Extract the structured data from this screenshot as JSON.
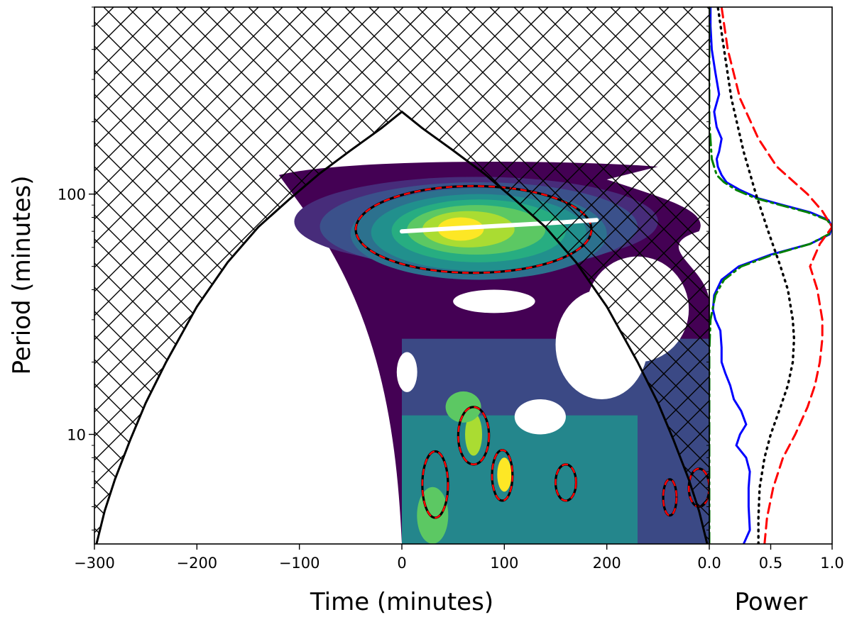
{
  "chart_data": [
    {
      "type": "heatmap",
      "subtype": "wavelet-power-spectrum",
      "title": "",
      "xlabel": "Time (minutes)",
      "ylabel": "Period (minutes)",
      "xlim": [
        -300,
        300
      ],
      "ylim": [
        3.5,
        600
      ],
      "yscale": "log",
      "x_ticks": [
        -300,
        -200,
        -100,
        0,
        100,
        200
      ],
      "x_tick_labels": [
        "−300",
        "−200",
        "−100",
        "0",
        "100",
        "200"
      ],
      "y_ticks": [
        10,
        100
      ],
      "y_tick_labels": [
        "10",
        "100"
      ],
      "colormap": "viridis",
      "cone_of_influence": {
        "t": [
          -298,
          -290,
          -280,
          -265,
          -250,
          -230,
          -200,
          -170,
          -140,
          -110,
          -80,
          -50,
          -20,
          0,
          20,
          50,
          80,
          110,
          140,
          170,
          200,
          230,
          250,
          265,
          280,
          290,
          298
        ],
        "period": [
          3.5,
          4.8,
          6.5,
          9.5,
          13.5,
          20,
          34,
          52,
          73,
          95,
          122,
          152,
          188,
          220,
          188,
          152,
          122,
          95,
          73,
          52,
          34,
          20,
          13.5,
          9.5,
          6.5,
          4.8,
          3.5
        ],
        "hatch": "crosshatch",
        "color": "#000000"
      },
      "ridge_line": {
        "t": [
          0,
          50,
          100,
          150,
          190
        ],
        "period": [
          70,
          72,
          74,
          76,
          78
        ],
        "color": "#ffffff"
      },
      "significance_contours": {
        "styles": [
          "solid black",
          "dashed red"
        ],
        "regions": [
          {
            "t_range": [
              -45,
              185
            ],
            "period_range": [
              47,
              108
            ]
          },
          {
            "t_range": [
              55,
              85
            ],
            "period_range": [
              7.5,
              13
            ]
          },
          {
            "t_range": [
              20,
              45
            ],
            "period_range": [
              4.5,
              8.5
            ]
          },
          {
            "t_range": [
              88,
              108
            ],
            "period_range": [
              5.3,
              8.6
            ]
          },
          {
            "t_range": [
              150,
              170
            ],
            "period_range": [
              5.3,
              7.5
            ]
          },
          {
            "t_range": [
              255,
              268
            ],
            "period_range": [
              4.6,
              6.5
            ]
          },
          {
            "t_range": [
              280,
              300
            ],
            "period_range": [
              5,
              7.2
            ]
          }
        ]
      },
      "dominant_period_minutes": 75
    },
    {
      "type": "line",
      "subtype": "global-wavelet-spectrum",
      "xlabel": "Power",
      "ylabel": "",
      "xlim": [
        0,
        1
      ],
      "yscale": "log",
      "ylim": [
        3.5,
        600
      ],
      "x_ticks": [
        0,
        0.5,
        1
      ],
      "x_tick_labels": [
        "0.0",
        "0.5",
        "1.0"
      ],
      "series": [
        {
          "color": "#0000ff",
          "style": "solid",
          "period": [
            3.5,
            4,
            5,
            6,
            7,
            8,
            9,
            10,
            11,
            12.5,
            14,
            16,
            18,
            20,
            23,
            27,
            30,
            33,
            38,
            44,
            50,
            56,
            62,
            68,
            73,
            78,
            84,
            90,
            96,
            104,
            112,
            120,
            130,
            140,
            150,
            170,
            190,
            220,
            260,
            320,
            400,
            500,
            600
          ],
          "power": [
            0.28,
            0.33,
            0.32,
            0.32,
            0.33,
            0.3,
            0.22,
            0.25,
            0.3,
            0.26,
            0.2,
            0.17,
            0.13,
            0.1,
            0.1,
            0.09,
            0.05,
            0.03,
            0.04,
            0.1,
            0.24,
            0.5,
            0.82,
            0.98,
            1.0,
            0.97,
            0.82,
            0.6,
            0.4,
            0.25,
            0.14,
            0.1,
            0.07,
            0.06,
            0.08,
            0.1,
            0.06,
            0.04,
            0.08,
            0.05,
            0.02,
            0.01,
            0.01
          ]
        },
        {
          "color": "#008000",
          "style": "dashdot",
          "period": [
            3.5,
            8,
            15,
            22,
            30,
            38,
            44,
            50,
            56,
            62,
            68,
            73,
            78,
            84,
            90,
            96,
            104,
            112,
            120,
            140,
            200,
            300,
            600
          ],
          "power": [
            0.0,
            0.0,
            0.0,
            0.0,
            0.01,
            0.05,
            0.12,
            0.26,
            0.52,
            0.82,
            0.97,
            1.0,
            0.96,
            0.8,
            0.58,
            0.38,
            0.22,
            0.12,
            0.06,
            0.02,
            0.0,
            0.0,
            0.0
          ]
        },
        {
          "color": "#000000",
          "style": "dotted",
          "period": [
            3.5,
            4.5,
            6,
            8,
            10,
            13,
            16,
            20,
            25,
            30,
            40,
            50,
            70,
            100,
            150,
            250,
            400,
            600
          ],
          "power": [
            0.4,
            0.4,
            0.41,
            0.45,
            0.5,
            0.58,
            0.64,
            0.68,
            0.69,
            0.68,
            0.64,
            0.58,
            0.48,
            0.38,
            0.28,
            0.18,
            0.12,
            0.07
          ]
        },
        {
          "color": "#ff0000",
          "style": "dashed",
          "period": [
            3.5,
            4.5,
            6,
            8,
            10,
            13,
            16,
            20,
            25,
            30,
            40,
            50,
            62,
            73,
            85,
            100,
            130,
            170,
            250,
            400,
            600
          ],
          "power": [
            0.45,
            0.47,
            0.52,
            0.6,
            0.7,
            0.8,
            0.86,
            0.9,
            0.92,
            0.92,
            0.88,
            0.82,
            0.9,
            1.0,
            0.92,
            0.8,
            0.55,
            0.4,
            0.25,
            0.15,
            0.1
          ]
        }
      ]
    }
  ]
}
